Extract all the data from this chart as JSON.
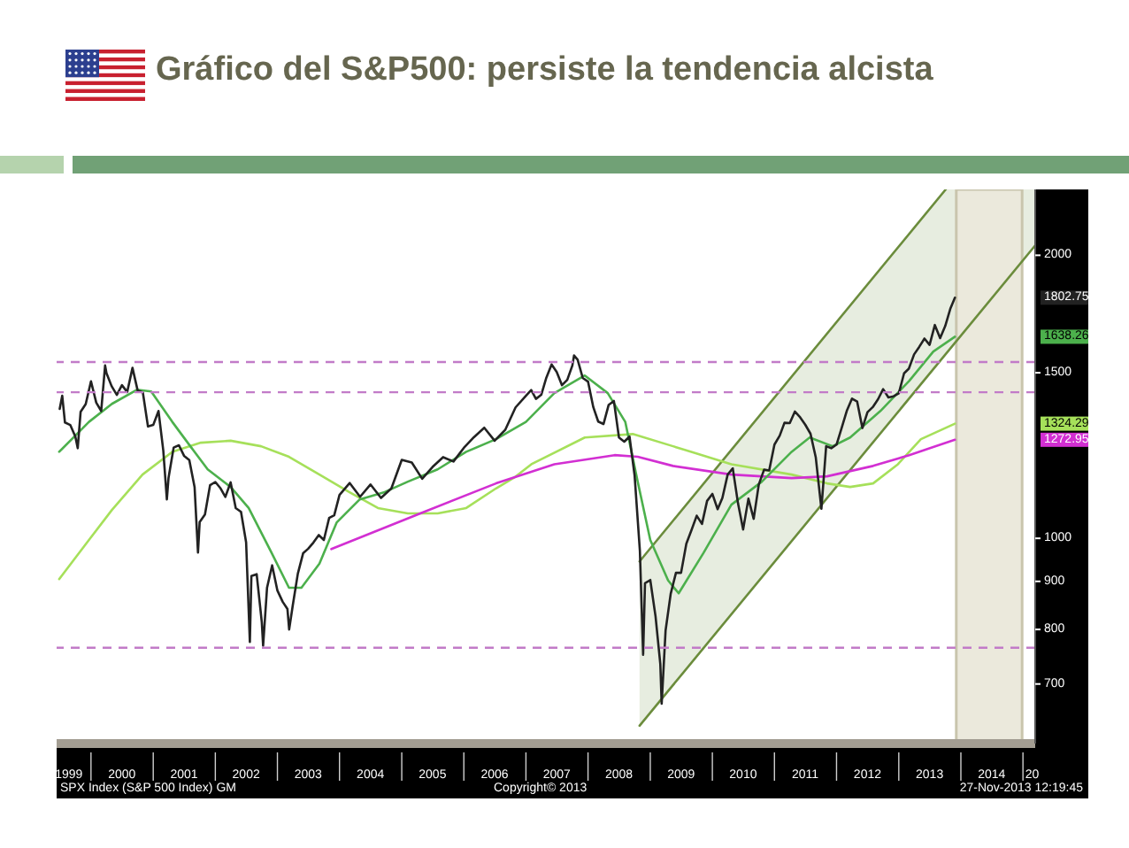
{
  "chart_data": {
    "type": "line",
    "title": "Gráfico del S&P500: persiste la tendencia alcista",
    "annotations": [
      "SPX Index (S&P 500 Index) GM",
      "Copyright© 2013",
      "27-Nov-2013 12:19:45"
    ],
    "log": true,
    "xlim": [
      "1999-06-13",
      "2015-03-14"
    ],
    "xticks": [
      {
        "value": "1999-08-24",
        "label": "1999"
      },
      {
        "value": "2000-01-01",
        "label": null
      },
      {
        "value": "2000-07-01",
        "label": "2000"
      },
      {
        "value": "2001-01-01",
        "label": null
      },
      {
        "value": "2001-07-01",
        "label": "2001"
      },
      {
        "value": "2002-01-01",
        "label": null
      },
      {
        "value": "2002-07-01",
        "label": "2002"
      },
      {
        "value": "2003-01-01",
        "label": null
      },
      {
        "value": "2003-07-01",
        "label": "2003"
      },
      {
        "value": "2004-01-01",
        "label": null
      },
      {
        "value": "2004-07-01",
        "label": "2004"
      },
      {
        "value": "2005-01-01",
        "label": null
      },
      {
        "value": "2005-07-01",
        "label": "2005"
      },
      {
        "value": "2006-01-01",
        "label": null
      },
      {
        "value": "2006-07-01",
        "label": "2006"
      },
      {
        "value": "2007-01-01",
        "label": null
      },
      {
        "value": "2007-07-01",
        "label": "2007"
      },
      {
        "value": "2008-01-01",
        "label": null
      },
      {
        "value": "2008-07-01",
        "label": "2008"
      },
      {
        "value": "2009-01-01",
        "label": null
      },
      {
        "value": "2009-07-01",
        "label": "2009"
      },
      {
        "value": "2010-01-01",
        "label": null
      },
      {
        "value": "2010-07-01",
        "label": "2010"
      },
      {
        "value": "2011-01-01",
        "label": null
      },
      {
        "value": "2011-07-01",
        "label": "2011"
      },
      {
        "value": "2012-01-01",
        "label": null
      },
      {
        "value": "2012-07-01",
        "label": "2012"
      },
      {
        "value": "2013-01-01",
        "label": null
      },
      {
        "value": "2013-07-01",
        "label": "2013"
      },
      {
        "value": "2014-01-01",
        "label": null
      },
      {
        "value": "2014-07-01",
        "label": "2014"
      },
      {
        "value": "2015-01-01",
        "label": null
      },
      {
        "value": "2015-02-24",
        "label": "20"
      }
    ],
    "ylim": [
      605,
      2350
    ],
    "yticks": [
      700,
      800,
      900,
      1000,
      1272.95,
      1324.29,
      1500,
      1638.26,
      1802.75,
      2000
    ],
    "ref_lines": [
      {
        "axis": "y",
        "value": 1540,
        "color": "#c27bc8",
        "line_style": "dashed"
      },
      {
        "axis": "y",
        "value": 1430,
        "color": "#c27bc8",
        "line_style": "dashed"
      },
      {
        "axis": "y",
        "value": 765,
        "color": "#c27bc8",
        "line_style": "dashed"
      }
    ],
    "bands": [
      {
        "axis": "x",
        "from": "2013-12-05",
        "to": "2014-12-27",
        "color": "#ebe9dc"
      }
    ],
    "series": [
      {
        "color": "#6b8c3c",
        "x": [
          "2008-10-30",
          "2013-10-04"
        ],
        "values": [
          945,
          2350
        ]
      },
      {
        "color": "#6b8c3c",
        "x": [
          "2008-10-30",
          "2015-03-14"
        ],
        "values": [
          632,
          2049
        ]
      },
      {
        "color": "#a6e05a",
        "x": [
          "1999-06-28",
          "1999-12-20",
          "2000-05-03",
          "2000-10-30",
          "2001-04-23",
          "2001-10-08",
          "2002-04-01",
          "2002-09-27",
          "2003-03-10",
          "2003-09-05",
          "2004-02-27",
          "2004-08-14",
          "2005-02-06",
          "2005-07-31",
          "2006-01-15",
          "2006-07-09",
          "2006-10-23",
          "2007-02-02",
          "2007-12-13",
          "2008-09-20",
          "2009-05-15",
          "2010-04-23",
          "2011-04-12",
          "2011-11-06",
          "2012-03-21",
          "2012-08-03",
          "2012-12-27",
          "2013-05-11",
          "2013-11-27"
        ],
        "values": [
          905,
          996,
          1072,
          1169,
          1236,
          1264,
          1270,
          1253,
          1221,
          1169,
          1120,
          1077,
          1063,
          1063,
          1077,
          1130,
          1160,
          1199,
          1280,
          1291,
          1253,
          1199,
          1169,
          1144,
          1134,
          1144,
          1199,
          1275,
          1324.29
        ]
      },
      {
        "color": "#d22fd2",
        "x": [
          "2003-11-14",
          "2005-04-20",
          "2006-07-09",
          "2007-06-17",
          "2008-06-05",
          "2008-10-19",
          "2009-05-15",
          "2010-04-23",
          "2011-04-12",
          "2011-11-06",
          "2012-08-03",
          "2013-03-03",
          "2013-11-27"
        ],
        "values": [
          974,
          1063,
          1144,
          1199,
          1226,
          1221,
          1194,
          1169,
          1159,
          1164,
          1194,
          1226,
          1272.95
        ]
      },
      {
        "color": "#4cb04c",
        "x": [
          "1999-06-28",
          "1999-12-20",
          "2000-05-03",
          "2000-09-27",
          "2000-12-20",
          "2001-04-23",
          "2001-08-07",
          "2001-11-17",
          "2002-04-01",
          "2002-07-16",
          "2002-11-28",
          "2003-03-10",
          "2003-05-22",
          "2003-09-05",
          "2003-12-16",
          "2004-04-29",
          "2004-09-22",
          "2005-02-06",
          "2005-07-31",
          "2006-01-15",
          "2006-07-09",
          "2007-01-01",
          "2007-06-17",
          "2007-12-13",
          "2008-04-26",
          "2008-08-07",
          "2008-10-19",
          "2009-01-01",
          "2009-04-16",
          "2009-06-17",
          "2009-11-10",
          "2010-04-23",
          "2010-10-19",
          "2011-04-12",
          "2011-07-27",
          "2011-12-09",
          "2012-03-21",
          "2012-09-15",
          "2013-03-03",
          "2013-07-23",
          "2013-11-27"
        ],
        "values": [
          1236,
          1330,
          1390,
          1439,
          1433,
          1330,
          1253,
          1184,
          1134,
          1077,
          965,
          886,
          886,
          940,
          1040,
          1100,
          1120,
          1149,
          1184,
          1236,
          1275,
          1330,
          1427,
          1490,
          1427,
          1330,
          1149,
          996,
          902,
          874,
          965,
          1086,
          1149,
          1236,
          1280,
          1253,
          1280,
          1366,
          1470,
          1580,
          1638.26
        ]
      },
      {
        "color": "#222222",
        "x": [
          "1999-07-01",
          "1999-07-16",
          "1999-08-01",
          "1999-09-01",
          "1999-10-01",
          "1999-10-15",
          "1999-11-01",
          "1999-12-01",
          "2000-01-01",
          "2000-02-01",
          "2000-03-01",
          "2000-03-24",
          "2000-04-01",
          "2000-05-01",
          "2000-06-01",
          "2000-07-01",
          "2000-08-01",
          "2000-09-01",
          "2000-10-01",
          "2000-11-01",
          "2000-12-01",
          "2001-01-01",
          "2001-02-01",
          "2001-03-01",
          "2001-03-22",
          "2001-04-01",
          "2001-05-01",
          "2001-06-01",
          "2001-07-01",
          "2001-08-01",
          "2001-09-01",
          "2001-09-21",
          "2001-10-01",
          "2001-11-01",
          "2001-12-01",
          "2002-01-01",
          "2002-02-01",
          "2002-03-01",
          "2002-04-01",
          "2002-05-01",
          "2002-06-01",
          "2002-07-01",
          "2002-07-23",
          "2002-08-01",
          "2002-09-01",
          "2002-10-01",
          "2002-10-09",
          "2002-11-01",
          "2002-12-01",
          "2003-01-01",
          "2003-02-01",
          "2003-03-01",
          "2003-03-11",
          "2003-04-01",
          "2003-05-01",
          "2003-06-01",
          "2003-07-01",
          "2003-08-01",
          "2003-09-01",
          "2003-10-01",
          "2003-11-01",
          "2003-12-01",
          "2004-01-01",
          "2004-03-01",
          "2004-05-01",
          "2004-07-01",
          "2004-09-01",
          "2004-11-01",
          "2005-01-01",
          "2005-03-01",
          "2005-05-01",
          "2005-07-01",
          "2005-09-01",
          "2005-11-01",
          "2006-01-01",
          "2006-03-01",
          "2006-05-01",
          "2006-07-01",
          "2006-09-01",
          "2006-11-01",
          "2007-01-01",
          "2007-02-01",
          "2007-03-01",
          "2007-04-01",
          "2007-05-01",
          "2007-06-01",
          "2007-07-01",
          "2007-08-01",
          "2007-09-01",
          "2007-10-01",
          "2007-10-11",
          "2007-11-01",
          "2007-12-01",
          "2008-01-01",
          "2008-02-01",
          "2008-03-01",
          "2008-04-01",
          "2008-05-01",
          "2008-06-01",
          "2008-07-01",
          "2008-08-01",
          "2008-09-01",
          "2008-10-01",
          "2008-11-01",
          "2008-11-20",
          "2008-12-01",
          "2009-01-01",
          "2009-02-01",
          "2009-03-01",
          "2009-03-09",
          "2009-04-01",
          "2009-05-01",
          "2009-06-01",
          "2009-07-01",
          "2009-08-01",
          "2009-09-01",
          "2009-10-01",
          "2009-11-01",
          "2009-12-01",
          "2010-01-01",
          "2010-02-01",
          "2010-03-01",
          "2010-04-01",
          "2010-05-01",
          "2010-06-01",
          "2010-07-01",
          "2010-08-01",
          "2010-09-01",
          "2010-10-01",
          "2010-11-01",
          "2010-12-01",
          "2011-01-01",
          "2011-02-01",
          "2011-03-01",
          "2011-04-01",
          "2011-05-01",
          "2011-06-01",
          "2011-07-01",
          "2011-08-01",
          "2011-09-01",
          "2011-10-04",
          "2011-11-01",
          "2011-12-01",
          "2012-01-01",
          "2012-02-01",
          "2012-03-01",
          "2012-04-01",
          "2012-05-01",
          "2012-06-01",
          "2012-07-01",
          "2012-08-01",
          "2012-09-01",
          "2012-10-01",
          "2012-11-01",
          "2012-12-01",
          "2013-01-01",
          "2013-02-01",
          "2013-03-01",
          "2013-04-01",
          "2013-05-01",
          "2013-06-01",
          "2013-07-01",
          "2013-08-01",
          "2013-09-01",
          "2013-10-01",
          "2013-11-01",
          "2013-11-27"
        ],
        "values": [
          1373,
          1418,
          1328,
          1320,
          1283,
          1247,
          1363,
          1389,
          1469,
          1394,
          1366,
          1527,
          1499,
          1452,
          1421,
          1455,
          1431,
          1518,
          1437,
          1429,
          1315,
          1320,
          1366,
          1240,
          1100,
          1160,
          1249,
          1256,
          1224,
          1211,
          1134,
          966,
          1041,
          1060,
          1139,
          1148,
          1130,
          1107,
          1147,
          1077,
          1067,
          990,
          776,
          912,
          916,
          815,
          769,
          886,
          936,
          880,
          856,
          841,
          800,
          848,
          917,
          964,
          975,
          990,
          1008,
          996,
          1051,
          1058,
          1112,
          1145,
          1107,
          1141,
          1104,
          1130,
          1212,
          1204,
          1157,
          1191,
          1220,
          1207,
          1248,
          1281,
          1311,
          1270,
          1304,
          1378,
          1418,
          1438,
          1407,
          1421,
          1482,
          1531,
          1503,
          1455,
          1474,
          1527,
          1565,
          1549,
          1481,
          1468,
          1379,
          1331,
          1323,
          1386,
          1400,
          1280,
          1267,
          1283,
          1166,
          969,
          752,
          896,
          903,
          826,
          735,
          667,
          798,
          873,
          919,
          919,
          987,
          1021,
          1057,
          1036,
          1096,
          1115,
          1074,
          1104,
          1169,
          1187,
          1089,
          1022,
          1102,
          1049,
          1141,
          1183,
          1181,
          1258,
          1286,
          1327,
          1326,
          1364,
          1345,
          1321,
          1292,
          1219,
          1075,
          1253,
          1247,
          1258,
          1312,
          1366,
          1408,
          1398,
          1310,
          1362,
          1379,
          1406,
          1441,
          1412,
          1416,
          1426,
          1498,
          1515,
          1569,
          1598,
          1631,
          1606,
          1686,
          1633,
          1682,
          1757,
          1802.75
        ]
      }
    ]
  }
}
